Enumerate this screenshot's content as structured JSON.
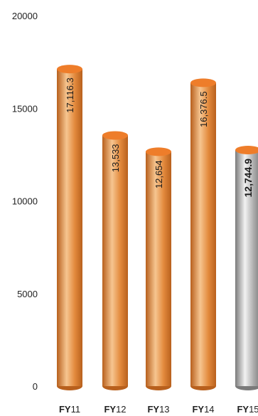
{
  "chart_data": {
    "type": "bar",
    "style": "cylinder",
    "categories": [
      {
        "prefix": "FY",
        "number": "11"
      },
      {
        "prefix": "FY",
        "number": "12"
      },
      {
        "prefix": "FY",
        "number": "13"
      },
      {
        "prefix": "FY",
        "number": "14"
      },
      {
        "prefix": "FY",
        "number": "15"
      }
    ],
    "values": [
      17116.3,
      13533,
      12654,
      16376.5,
      12744.9
    ],
    "value_labels": [
      "17,116.3",
      "13,533",
      "12,654",
      "16,376.5",
      "12,744.9"
    ],
    "highlight_index": 4,
    "ylim": [
      0,
      20000
    ],
    "yticks": [
      0,
      5000,
      10000,
      15000,
      20000
    ],
    "ytick_labels": [
      "0",
      "5000",
      "10000",
      "15000",
      "20000"
    ],
    "grid": false,
    "colors": {
      "bar": "#e38a3d",
      "bar_dark": "#b8601d",
      "bar_light": "#f6c590",
      "highlight": "#b0b0b0",
      "highlight_dark": "#7a7a7a",
      "highlight_light": "#f2f2f2",
      "cap": "#ee7d2a"
    }
  }
}
